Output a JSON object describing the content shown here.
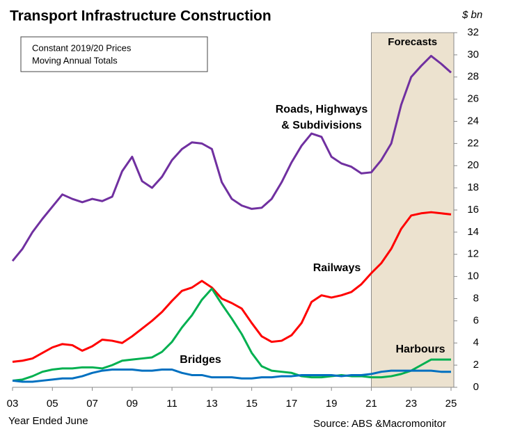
{
  "chart_data": {
    "type": "line",
    "title": "Transport Infrastructure Construction",
    "y_axis_label": "$ bn",
    "x_axis_label": "Year Ended June",
    "source": "Source: ABS &Macromonitor",
    "note_lines": [
      "Constant 2019/20 Prices",
      "Moving Annual Totals"
    ],
    "forecast_label": "Forecasts",
    "forecast_range": [
      2021,
      2025.14
    ],
    "forecast_color": "#ece2cf",
    "x": [
      2003,
      2003.5,
      2004,
      2004.5,
      2005,
      2005.5,
      2006,
      2006.5,
      2007,
      2007.5,
      2008,
      2008.5,
      2009,
      2009.5,
      2010,
      2010.5,
      2011,
      2011.5,
      2012,
      2012.5,
      2013,
      2013.5,
      2014,
      2014.5,
      2015,
      2015.5,
      2016,
      2016.5,
      2017,
      2017.5,
      2018,
      2018.5,
      2019,
      2019.5,
      2020,
      2020.5,
      2021,
      2021.5,
      2022,
      2022.5,
      2023,
      2023.5,
      2024,
      2024.5,
      2025
    ],
    "series": [
      {
        "name": "Roads, Highways & Subdivisions",
        "label_lines": [
          "Roads, Highways",
          "& Subdivisions"
        ],
        "color": "#7030a0",
        "values": [
          11.4,
          12.5,
          14,
          15.2,
          16.3,
          17.4,
          17,
          16.7,
          17,
          16.8,
          17.2,
          19.5,
          20.8,
          18.6,
          18,
          19,
          20.5,
          21.5,
          22.1,
          22,
          21.5,
          18.5,
          17,
          16.4,
          16.1,
          16.2,
          17,
          18.5,
          20.3,
          21.8,
          22.9,
          22.6,
          20.8,
          20.2,
          19.9,
          19.3,
          19.4,
          20.5,
          22,
          25.5,
          28,
          29,
          29.9,
          29.2,
          28.4
        ]
      },
      {
        "name": "Railways",
        "color": "#ff0000",
        "values": [
          2.3,
          2.4,
          2.6,
          3.1,
          3.6,
          3.9,
          3.8,
          3.3,
          3.7,
          4.3,
          4.2,
          4.0,
          4.6,
          5.3,
          6,
          6.8,
          7.8,
          8.7,
          9.0,
          9.6,
          9.0,
          8.0,
          7.6,
          7.1,
          5.8,
          4.6,
          4.1,
          4.2,
          4.7,
          5.8,
          7.7,
          8.3,
          8.1,
          8.3,
          8.6,
          9.3,
          10.3,
          11.2,
          12.5,
          14.3,
          15.5,
          15.7,
          15.8,
          15.7,
          15.6
        ]
      },
      {
        "name": "Harbours",
        "color": "#00b050",
        "values": [
          0.6,
          0.7,
          1.0,
          1.4,
          1.6,
          1.7,
          1.7,
          1.8,
          1.8,
          1.7,
          2.0,
          2.4,
          2.5,
          2.6,
          2.7,
          3.2,
          4.1,
          5.4,
          6.5,
          7.9,
          8.9,
          7.5,
          6.2,
          4.8,
          3.1,
          1.9,
          1.5,
          1.4,
          1.3,
          1.0,
          0.9,
          0.9,
          1.0,
          1.1,
          1.0,
          1.0,
          0.9,
          0.9,
          1.0,
          1.2,
          1.5,
          2.0,
          2.5,
          2.5,
          2.5
        ]
      },
      {
        "name": "Bridges",
        "color": "#0070c0",
        "values": [
          0.6,
          0.5,
          0.5,
          0.6,
          0.7,
          0.8,
          0.8,
          1.0,
          1.3,
          1.5,
          1.6,
          1.6,
          1.6,
          1.5,
          1.5,
          1.6,
          1.6,
          1.3,
          1.1,
          1.1,
          0.9,
          0.9,
          0.9,
          0.8,
          0.8,
          0.9,
          0.9,
          1.0,
          1.0,
          1.1,
          1.1,
          1.1,
          1.1,
          1.0,
          1.1,
          1.1,
          1.2,
          1.4,
          1.5,
          1.5,
          1.5,
          1.5,
          1.5,
          1.4,
          1.4
        ]
      }
    ],
    "xlim": [
      2003,
      2025.14
    ],
    "xticks": [
      {
        "value": 2003,
        "label": "03"
      },
      {
        "value": 2005,
        "label": "05"
      },
      {
        "value": 2007,
        "label": "07"
      },
      {
        "value": 2009,
        "label": "09"
      },
      {
        "value": 2011,
        "label": "11"
      },
      {
        "value": 2013,
        "label": "13"
      },
      {
        "value": 2015,
        "label": "15"
      },
      {
        "value": 2017,
        "label": "17"
      },
      {
        "value": 2019,
        "label": "19"
      },
      {
        "value": 2021,
        "label": "21"
      },
      {
        "value": 2023,
        "label": "23"
      },
      {
        "value": 2025,
        "label": "25"
      }
    ],
    "ylim": [
      0,
      32
    ],
    "yticks": [
      0,
      2,
      4,
      6,
      8,
      10,
      12,
      14,
      16,
      18,
      20,
      22,
      24,
      26,
      28,
      30,
      32
    ],
    "grid": false
  }
}
